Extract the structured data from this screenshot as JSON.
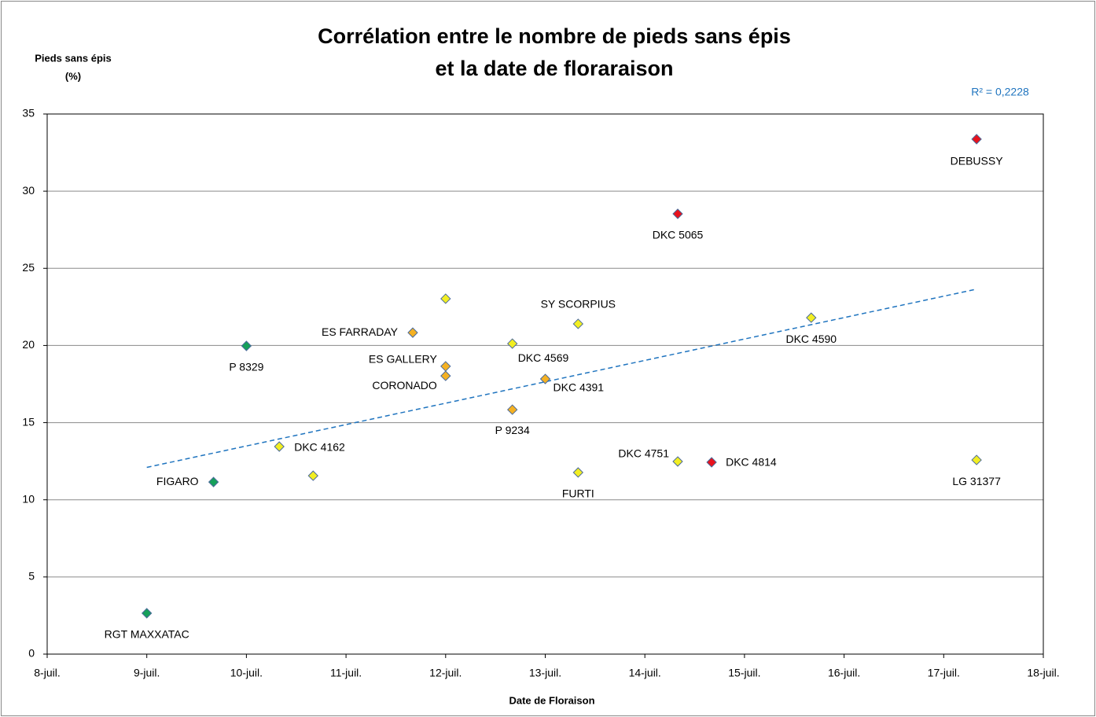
{
  "chart_data": {
    "type": "scatter",
    "title": [
      "Corrélation entre le nombre de pieds sans épis",
      "et la date de  floraraison"
    ],
    "ylabel": [
      "Pieds sans épis",
      "(%)"
    ],
    "xlabel": "Date de Floraison",
    "xlim": [
      8,
      18
    ],
    "xticks": [
      {
        "value": 8,
        "label": "8-juil."
      },
      {
        "value": 9,
        "label": "9-juil."
      },
      {
        "value": 10,
        "label": "10-juil."
      },
      {
        "value": 11,
        "label": "11-juil."
      },
      {
        "value": 12,
        "label": "12-juil."
      },
      {
        "value": 13,
        "label": "13-juil."
      },
      {
        "value": 14,
        "label": "14-juil."
      },
      {
        "value": 15,
        "label": "15-juil."
      },
      {
        "value": 16,
        "label": "16-juil."
      },
      {
        "value": 17,
        "label": "17-juil."
      },
      {
        "value": 18,
        "label": "18-juil."
      }
    ],
    "ylim": [
      0,
      35
    ],
    "yticks": [
      0,
      5,
      10,
      15,
      20,
      25,
      30,
      35
    ],
    "grid": true,
    "points": [
      {
        "label": "RGT MAXXATAC",
        "x": 9.0,
        "y": 2.65,
        "color": "#16a05a"
      },
      {
        "label": "FIGARO",
        "x": 9.67,
        "y": 11.15,
        "color": "#16a05a"
      },
      {
        "label": "P 8329",
        "x": 10.0,
        "y": 19.97,
        "color": "#16a05a"
      },
      {
        "label": "DKC 4162",
        "x": 10.33,
        "y": 13.45,
        "color": "#f2ee22"
      },
      {
        "label": null,
        "x": 10.67,
        "y": 11.56,
        "color": "#f2ee22"
      },
      {
        "label": "ES FARRADAY",
        "x": 11.67,
        "y": 20.83,
        "color": "#f5b122"
      },
      {
        "label": null,
        "x": 12.0,
        "y": 23.03,
        "color": "#f2ee22"
      },
      {
        "label": "ES GALLERY",
        "x": 12.0,
        "y": 18.65,
        "color": "#f5b122"
      },
      {
        "label": "CORONADO",
        "x": 12.0,
        "y": 18.03,
        "color": "#f5b122"
      },
      {
        "label": "DKC 4569",
        "x": 12.67,
        "y": 20.12,
        "color": "#f2ee22"
      },
      {
        "label": "P 9234",
        "x": 12.67,
        "y": 15.84,
        "color": "#f5b122"
      },
      {
        "label": "DKC 4391",
        "x": 13.0,
        "y": 17.83,
        "color": "#f5b122"
      },
      {
        "label": "SY SCORPIUS",
        "x": 13.33,
        "y": 21.4,
        "color": "#f2ee22"
      },
      {
        "label": "FURTI",
        "x": 13.33,
        "y": 11.77,
        "color": "#f2ee22"
      },
      {
        "label": "DKC 5065",
        "x": 14.33,
        "y": 28.53,
        "color": "#e8121c"
      },
      {
        "label": "DKC 4751",
        "x": 14.33,
        "y": 12.48,
        "color": "#f2ee22"
      },
      {
        "label": "DKC 4814",
        "x": 14.67,
        "y": 12.43,
        "color": "#e8121c"
      },
      {
        "label": "DKC 4590",
        "x": 15.67,
        "y": 21.8,
        "color": "#f2ee22"
      },
      {
        "label": "DEBUSSY",
        "x": 17.33,
        "y": 33.37,
        "color": "#e8121c"
      },
      {
        "label": "LG 31377",
        "x": 17.33,
        "y": 12.58,
        "color": "#f2ee22"
      }
    ],
    "trendline": {
      "x": [
        9.0,
        17.33
      ],
      "y": [
        12.1,
        23.65
      ],
      "color": "#1f74bf",
      "label": "R² = 0,2228"
    }
  }
}
